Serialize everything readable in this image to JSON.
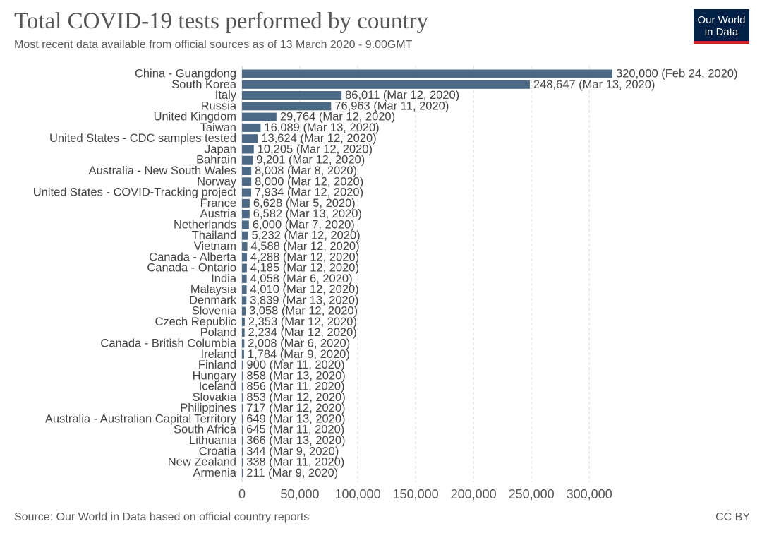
{
  "header": {
    "title": "Total COVID-19 tests performed by country",
    "subtitle": "Most recent data available from official sources as of 13 March 2020 - 9.00GMT"
  },
  "logo": {
    "line1": "Our World",
    "line2": "in Data",
    "bg_color": "#002147",
    "accent_color": "#ce261e"
  },
  "footer": {
    "source": "Source: Our World in Data based on official country reports",
    "license": "CC BY"
  },
  "chart_data": {
    "type": "bar",
    "orientation": "horizontal",
    "bar_color": "#4c6a85",
    "xlim": [
      0,
      330000
    ],
    "x_ticks": [
      0,
      50000,
      100000,
      150000,
      200000,
      250000,
      300000
    ],
    "x_tick_labels": [
      "0",
      "50,000",
      "100,000",
      "150,000",
      "200,000",
      "250,000",
      "300,000"
    ],
    "grid": true,
    "categories": [
      "China - Guangdong",
      "South Korea",
      "Italy",
      "Russia",
      "United Kingdom",
      "Taiwan",
      "United States - CDC samples tested",
      "Japan",
      "Bahrain",
      "Australia - New South Wales",
      "Norway",
      "United States - COVID-Tracking project",
      "France",
      "Austria",
      "Netherlands",
      "Thailand",
      "Vietnam",
      "Canada - Alberta",
      "Canada - Ontario",
      "India",
      "Malaysia",
      "Denmark",
      "Slovenia",
      "Czech Republic",
      "Poland",
      "Canada - British Columbia",
      "Ireland",
      "Finland",
      "Hungary",
      "Iceland",
      "Slovakia",
      "Philippines",
      "Australia - Australian Capital Territory",
      "South Africa",
      "Lithuania",
      "Croatia",
      "New Zealand",
      "Armenia"
    ],
    "values": [
      320000,
      248647,
      86011,
      76963,
      29764,
      16089,
      13624,
      10205,
      9201,
      8008,
      8000,
      7934,
      6628,
      6582,
      6000,
      5232,
      4588,
      4288,
      4185,
      4058,
      4010,
      3839,
      3058,
      2353,
      2234,
      2008,
      1784,
      900,
      858,
      856,
      853,
      717,
      649,
      645,
      366,
      344,
      338,
      211
    ],
    "value_labels": [
      "320,000 (Feb 24, 2020)",
      "248,647 (Mar 13, 2020)",
      "86,011 (Mar 12, 2020)",
      "76,963 (Mar 11, 2020)",
      "29,764 (Mar 12, 2020)",
      "16,089 (Mar 13, 2020)",
      "13,624 (Mar 12, 2020)",
      "10,205 (Mar 12, 2020)",
      "9,201 (Mar 12, 2020)",
      "8,008 (Mar 8, 2020)",
      "8,000 (Mar 12, 2020)",
      "7,934 (Mar 12, 2020)",
      "6,628 (Mar 5, 2020)",
      "6,582 (Mar 13, 2020)",
      "6,000 (Mar 7, 2020)",
      "5,232 (Mar 12, 2020)",
      "4,588 (Mar 12, 2020)",
      "4,288 (Mar 12, 2020)",
      "4,185 (Mar 12, 2020)",
      "4,058 (Mar 6, 2020)",
      "4,010 (Mar 12, 2020)",
      "3,839 (Mar 13, 2020)",
      "3,058 (Mar 12, 2020)",
      "2,353 (Mar 12, 2020)",
      "2,234 (Mar 12, 2020)",
      "2,008 (Mar 6, 2020)",
      "1,784 (Mar 9, 2020)",
      "900 (Mar 11, 2020)",
      "858 (Mar 13, 2020)",
      "856 (Mar 11, 2020)",
      "853 (Mar 12, 2020)",
      "717 (Mar 12, 2020)",
      "649 (Mar 13, 2020)",
      "645 (Mar 11, 2020)",
      "366 (Mar 13, 2020)",
      "344 (Mar 9, 2020)",
      "338 (Mar 11, 2020)",
      "211 (Mar 9, 2020)"
    ]
  }
}
